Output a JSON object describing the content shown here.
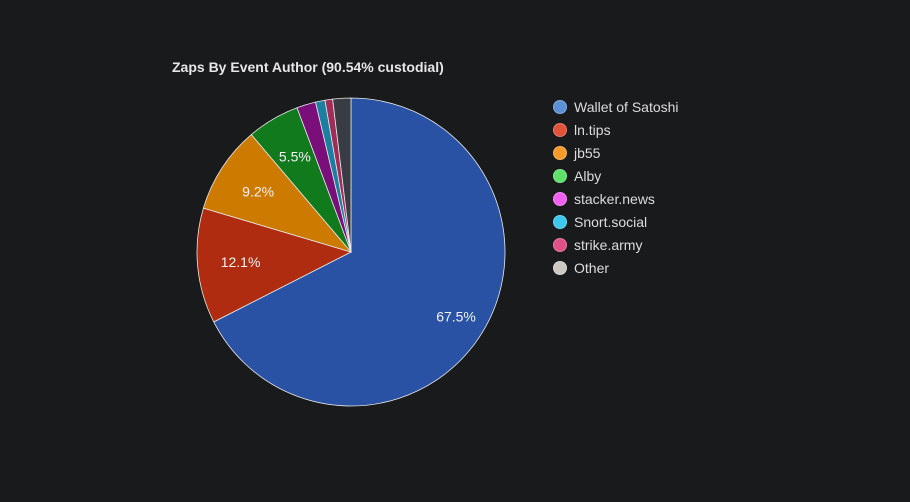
{
  "chart_data": {
    "type": "pie",
    "title": "Zaps By Event Author (90.54% custodial)",
    "legend_position": "right",
    "start_angle_deg": 0,
    "direction": "clockwise",
    "slices": [
      {
        "label": "Wallet of Satoshi",
        "value": 67.5,
        "data_label": "67.5%",
        "slice_color": "#2a52a4",
        "legend_color": "#5b8fd6"
      },
      {
        "label": "ln.tips",
        "value": 12.1,
        "data_label": "12.1%",
        "slice_color": "#b02c10",
        "legend_color": "#e0533a"
      },
      {
        "label": "jb55",
        "value": 9.2,
        "data_label": "9.2%",
        "slice_color": "#cc7a00",
        "legend_color": "#f59a2a"
      },
      {
        "label": "Alby",
        "value": 5.5,
        "data_label": "5.5%",
        "slice_color": "#117a1c",
        "legend_color": "#5ee06a"
      },
      {
        "label": "stacker.news",
        "value": 2.0,
        "data_label": "",
        "slice_color": "#7a0f7a",
        "legend_color": "#f060f0"
      },
      {
        "label": "Snort.social",
        "value": 1.0,
        "data_label": "",
        "slice_color": "#1c7fa0",
        "legend_color": "#3cc8ee"
      },
      {
        "label": "strike.army",
        "value": 0.8,
        "data_label": "",
        "slice_color": "#a02c58",
        "legend_color": "#e05088"
      },
      {
        "label": "Other",
        "value": 1.9,
        "data_label": "",
        "slice_color": "#3a3c44",
        "legend_color": "#cdc8c0"
      }
    ]
  }
}
